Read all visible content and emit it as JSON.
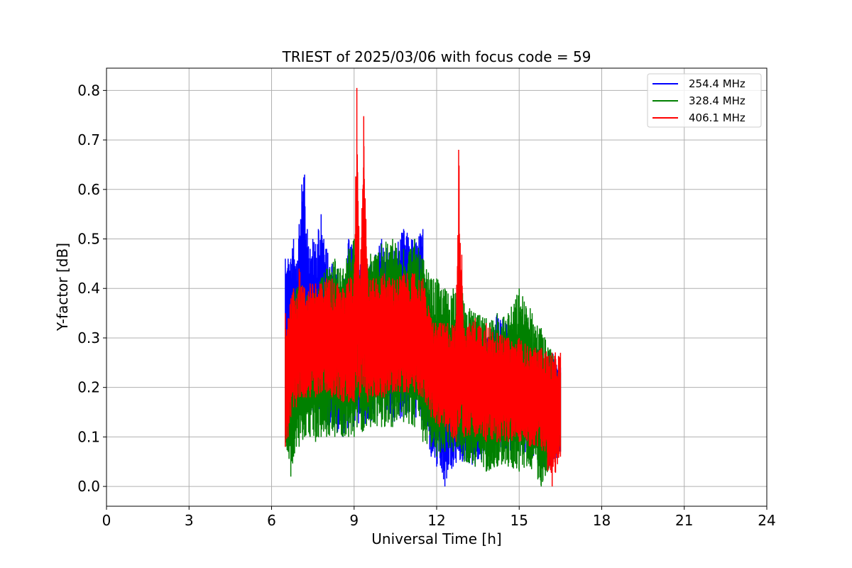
{
  "chart_data": {
    "type": "line",
    "title": "TRIEST of 2025/03/06 with focus code = 59",
    "xlabel": "Universal Time [h]",
    "ylabel": "Y-factor [dB]",
    "xlim": [
      0,
      24
    ],
    "ylim": [
      -0.04,
      0.845
    ],
    "xticks": [
      0,
      3,
      6,
      9,
      12,
      15,
      18,
      21,
      24
    ],
    "xtick_labels": [
      "0",
      "3",
      "6",
      "9",
      "12",
      "15",
      "18",
      "21",
      "24"
    ],
    "yticks": [
      0.0,
      0.1,
      0.2,
      0.3,
      0.4,
      0.5,
      0.6,
      0.7,
      0.8
    ],
    "ytick_labels": [
      "0.0",
      "0.1",
      "0.2",
      "0.3",
      "0.4",
      "0.5",
      "0.6",
      "0.7",
      "0.8"
    ],
    "grid": true,
    "legend_position": "top-right",
    "series": [
      {
        "name": "254.4 MHz",
        "color": "#0000ff",
        "x": [
          6.5,
          6.6,
          6.7,
          6.8,
          6.9,
          7.0,
          7.1,
          7.2,
          7.3,
          7.4,
          7.5,
          7.6,
          7.7,
          7.8,
          7.9,
          8.0,
          8.2,
          8.4,
          8.6,
          8.8,
          9.0,
          9.3,
          9.6,
          10.0,
          10.4,
          10.8,
          11.2,
          11.5,
          11.8,
          12.0,
          12.3,
          12.6,
          13.0,
          13.4,
          13.8,
          14.2,
          14.6,
          15.0,
          15.4,
          15.8,
          16.2,
          16.5
        ],
        "y_max": [
          0.46,
          0.46,
          0.46,
          0.5,
          0.45,
          0.53,
          0.61,
          0.63,
          0.52,
          0.48,
          0.5,
          0.49,
          0.52,
          0.55,
          0.5,
          0.48,
          0.45,
          0.44,
          0.4,
          0.5,
          0.48,
          0.46,
          0.45,
          0.5,
          0.48,
          0.52,
          0.5,
          0.52,
          0.36,
          0.32,
          0.3,
          0.3,
          0.28,
          0.3,
          0.3,
          0.35,
          0.33,
          0.32,
          0.3,
          0.28,
          0.27,
          0.24
        ],
        "y_min": [
          0.1,
          0.12,
          0.12,
          0.14,
          0.16,
          0.18,
          0.18,
          0.2,
          0.18,
          0.16,
          0.15,
          0.15,
          0.15,
          0.16,
          0.14,
          0.12,
          0.12,
          0.11,
          0.1,
          0.12,
          0.12,
          0.12,
          0.13,
          0.14,
          0.13,
          0.14,
          0.14,
          0.12,
          0.06,
          0.04,
          0.0,
          0.04,
          0.05,
          0.04,
          0.06,
          0.07,
          0.07,
          0.07,
          0.06,
          0.04,
          0.03,
          0.07
        ]
      },
      {
        "name": "328.4 MHz",
        "color": "#008000",
        "x": [
          6.5,
          6.6,
          6.7,
          6.8,
          6.9,
          7.0,
          7.2,
          7.4,
          7.6,
          7.8,
          8.0,
          8.3,
          8.6,
          8.8,
          9.0,
          9.3,
          9.6,
          10.0,
          10.4,
          10.8,
          11.2,
          11.5,
          11.8,
          12.0,
          12.3,
          12.6,
          12.8,
          13.0,
          13.4,
          13.8,
          14.2,
          14.6,
          15.0,
          15.4,
          15.8,
          16.2,
          16.5
        ],
        "y_max": [
          0.32,
          0.33,
          0.36,
          0.4,
          0.4,
          0.42,
          0.4,
          0.4,
          0.4,
          0.42,
          0.44,
          0.46,
          0.44,
          0.48,
          0.5,
          0.45,
          0.47,
          0.49,
          0.5,
          0.48,
          0.5,
          0.46,
          0.42,
          0.42,
          0.4,
          0.4,
          0.45,
          0.37,
          0.35,
          0.34,
          0.35,
          0.35,
          0.4,
          0.36,
          0.32,
          0.27,
          0.23
        ],
        "y_min": [
          0.08,
          0.07,
          0.02,
          0.06,
          0.08,
          0.08,
          0.1,
          0.1,
          0.09,
          0.1,
          0.1,
          0.1,
          0.1,
          0.1,
          0.1,
          0.11,
          0.12,
          0.12,
          0.12,
          0.13,
          0.12,
          0.09,
          0.08,
          0.06,
          0.07,
          0.07,
          0.08,
          0.05,
          0.04,
          0.03,
          0.04,
          0.04,
          0.03,
          0.04,
          0.0,
          0.05,
          0.07
        ]
      },
      {
        "name": "406.1 MHz",
        "color": "#ff0000",
        "x": [
          6.5,
          6.6,
          6.7,
          6.8,
          6.9,
          7.0,
          7.2,
          7.4,
          7.6,
          7.8,
          8.0,
          8.2,
          8.4,
          8.6,
          8.8,
          9.0,
          9.1,
          9.2,
          9.35,
          9.5,
          9.8,
          10.1,
          10.4,
          10.8,
          11.2,
          11.5,
          11.8,
          12.1,
          12.4,
          12.7,
          12.8,
          13.0,
          13.4,
          13.8,
          14.2,
          14.6,
          15.0,
          15.4,
          15.8,
          16.2,
          16.5
        ],
        "y_max": [
          0.35,
          0.34,
          0.38,
          0.4,
          0.38,
          0.44,
          0.4,
          0.41,
          0.41,
          0.41,
          0.42,
          0.42,
          0.41,
          0.4,
          0.42,
          0.43,
          0.805,
          0.42,
          0.748,
          0.42,
          0.42,
          0.43,
          0.42,
          0.43,
          0.43,
          0.42,
          0.34,
          0.33,
          0.33,
          0.33,
          0.68,
          0.32,
          0.34,
          0.33,
          0.31,
          0.3,
          0.3,
          0.28,
          0.28,
          0.27,
          0.27
        ],
        "y_min": [
          0.08,
          0.1,
          0.14,
          0.16,
          0.16,
          0.18,
          0.18,
          0.18,
          0.18,
          0.19,
          0.19,
          0.18,
          0.18,
          0.17,
          0.17,
          0.17,
          0.2,
          0.18,
          0.2,
          0.17,
          0.18,
          0.18,
          0.19,
          0.19,
          0.19,
          0.18,
          0.14,
          0.12,
          0.11,
          0.09,
          0.12,
          0.1,
          0.1,
          0.09,
          0.09,
          0.09,
          0.09,
          0.08,
          0.08,
          0.0,
          0.06
        ]
      }
    ]
  }
}
